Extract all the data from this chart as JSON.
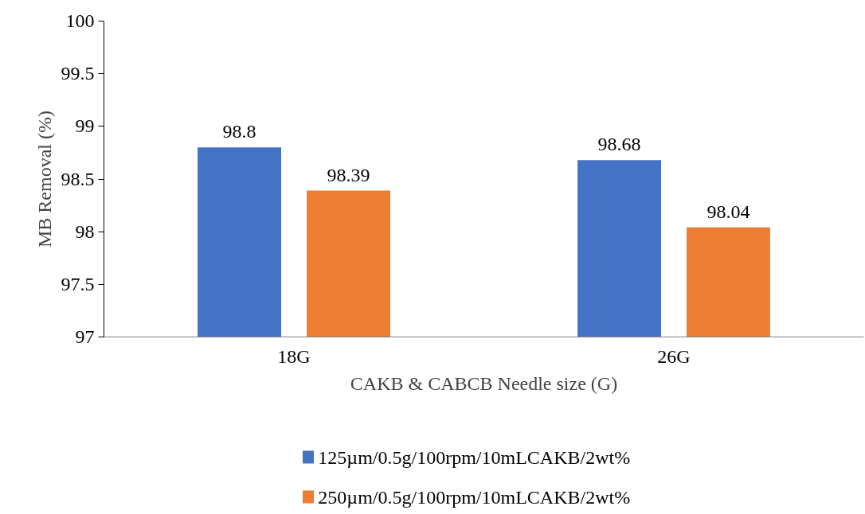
{
  "chart_data": {
    "type": "bar",
    "xlabel": "CAKB & CABCB Needle size (G)",
    "ylabel": "MB Removal (%)",
    "categories": [
      "18G",
      "26G"
    ],
    "series": [
      {
        "name": "125µm/0.5g/100rpm/10mLCAKB/2wt%",
        "color": "#4472c4",
        "values": [
          98.8,
          98.68
        ]
      },
      {
        "name": "250µm/0.5g/100rpm/10mLCAKB/2wt%",
        "color": "#ed7d31",
        "values": [
          98.39,
          98.04
        ]
      }
    ],
    "ylim": [
      97,
      100
    ],
    "yticks": [
      97,
      97.5,
      98,
      98.5,
      99,
      99.5,
      100
    ],
    "grid": false,
    "legend": "bottom",
    "data_labels": true
  }
}
